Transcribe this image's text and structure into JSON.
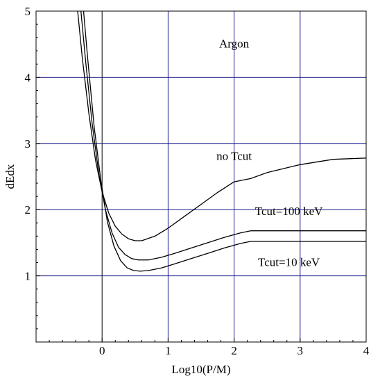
{
  "chart_data": {
    "type": "line",
    "title": "",
    "xlabel": "Log10(P/M)",
    "ylabel": "dEdx",
    "xlim": [
      -1,
      4
    ],
    "ylim": [
      0,
      5
    ],
    "xticks": [
      0,
      1,
      2,
      3,
      4
    ],
    "yticks": [
      1,
      2,
      3,
      4,
      5
    ],
    "grid": true,
    "colors": {
      "grid": "#1a1a8c",
      "curve": "#000000",
      "frame": "#000000"
    },
    "annotations": [
      {
        "text": "Argon",
        "x": 2.0,
        "y": 4.45
      },
      {
        "text": "no Tcut",
        "x": 2.0,
        "y": 2.75
      },
      {
        "text": "Tcut=100 keV",
        "x": 2.83,
        "y": 1.92
      },
      {
        "text": "Tcut=10 keV",
        "x": 2.83,
        "y": 1.15
      }
    ],
    "series": [
      {
        "name": "no Tcut",
        "x": [
          -0.37,
          -0.3,
          -0.2,
          -0.1,
          0.0,
          0.1,
          0.2,
          0.3,
          0.4,
          0.5,
          0.6,
          0.8,
          1.0,
          1.25,
          1.5,
          1.75,
          2.0,
          2.25,
          2.5,
          3.0,
          3.5,
          4.0
        ],
        "y": [
          5.0,
          4.3,
          3.45,
          2.75,
          2.27,
          1.95,
          1.75,
          1.63,
          1.56,
          1.53,
          1.53,
          1.6,
          1.72,
          1.9,
          2.08,
          2.26,
          2.42,
          2.47,
          2.56,
          2.68,
          2.76,
          2.78
        ]
      },
      {
        "name": "Tcut=100 keV",
        "x": [
          -0.32,
          -0.25,
          -0.15,
          -0.05,
          0.05,
          0.15,
          0.25,
          0.35,
          0.45,
          0.55,
          0.7,
          0.9,
          1.1,
          1.35,
          1.6,
          1.85,
          2.1,
          2.25,
          2.6,
          3.0,
          3.5,
          4.0
        ],
        "y": [
          5.0,
          4.25,
          3.3,
          2.55,
          2.0,
          1.65,
          1.43,
          1.32,
          1.26,
          1.24,
          1.24,
          1.28,
          1.34,
          1.42,
          1.5,
          1.58,
          1.65,
          1.68,
          1.68,
          1.68,
          1.68,
          1.68
        ]
      },
      {
        "name": "Tcut=10 keV",
        "x": [
          -0.28,
          -0.22,
          -0.12,
          -0.02,
          0.08,
          0.18,
          0.28,
          0.38,
          0.48,
          0.58,
          0.7,
          0.9,
          1.1,
          1.35,
          1.6,
          1.85,
          2.1,
          2.25,
          2.6,
          3.0,
          3.5,
          4.0
        ],
        "y": [
          5.0,
          4.3,
          3.25,
          2.45,
          1.82,
          1.45,
          1.23,
          1.12,
          1.08,
          1.07,
          1.08,
          1.12,
          1.18,
          1.26,
          1.34,
          1.42,
          1.49,
          1.52,
          1.52,
          1.52,
          1.52,
          1.52
        ]
      }
    ]
  }
}
